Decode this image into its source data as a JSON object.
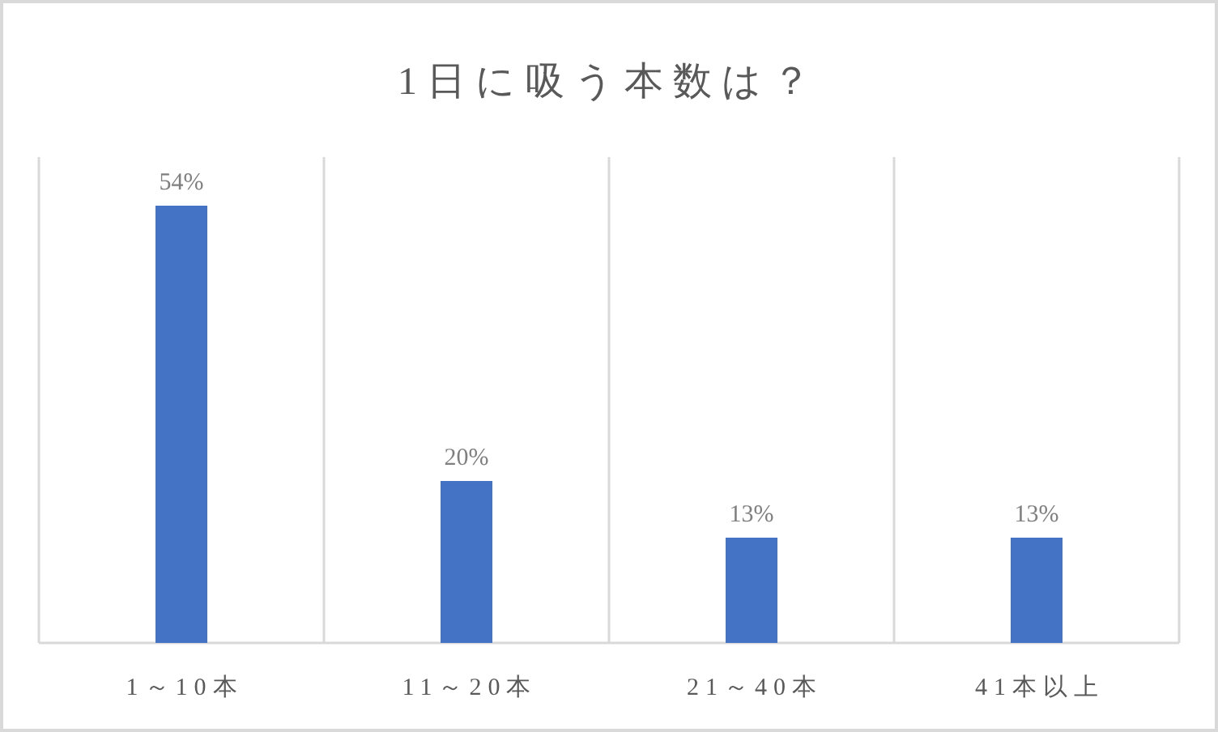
{
  "chart_data": {
    "type": "bar",
    "title": "1日に吸う本数は？",
    "categories": [
      "1～10本",
      "11～20本",
      "21～40本",
      "41本以上"
    ],
    "values": [
      54,
      20,
      13,
      13
    ],
    "color": "#4472c4",
    "value_labels": [
      "54%",
      "20%",
      "13%",
      "13%"
    ],
    "grid": "x"
  }
}
